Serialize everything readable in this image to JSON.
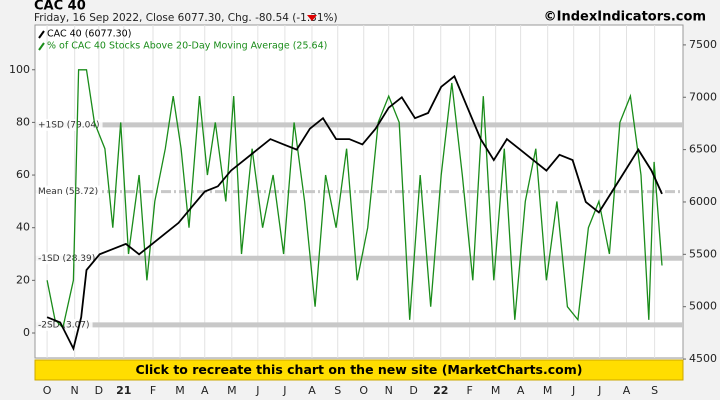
{
  "chart_data": {
    "type": "line",
    "title": "CAC 40",
    "subtitle": "Friday, 16 Sep 2022, Close 6077.30, Chg. -80.54 (-1.31%)",
    "source": "©IndexIndicators.com",
    "banner": "Click to recreate this chart on the new site (MarketCharts.com)",
    "xlim": [
      -0.46,
      24.2
    ],
    "xticks": [
      {
        "value": 0,
        "label": "O"
      },
      {
        "value": 1.05,
        "label": "N"
      },
      {
        "value": 1.97,
        "label": "D"
      },
      {
        "value": 2.92,
        "label": "21"
      },
      {
        "value": 4.03,
        "label": "F"
      },
      {
        "value": 5.06,
        "label": "M"
      },
      {
        "value": 6.0,
        "label": "A"
      },
      {
        "value": 7.03,
        "label": "M"
      },
      {
        "value": 8.02,
        "label": "J"
      },
      {
        "value": 9.05,
        "label": "J"
      },
      {
        "value": 10.08,
        "label": "A"
      },
      {
        "value": 11.06,
        "label": "S"
      },
      {
        "value": 12.05,
        "label": "O"
      },
      {
        "value": 13.0,
        "label": "N"
      },
      {
        "value": 13.95,
        "label": "D"
      },
      {
        "value": 14.98,
        "label": "22"
      },
      {
        "value": 16.08,
        "label": "F"
      },
      {
        "value": 17.07,
        "label": "M"
      },
      {
        "value": 18.02,
        "label": "A"
      },
      {
        "value": 19.05,
        "label": "M"
      },
      {
        "value": 20.04,
        "label": "J"
      },
      {
        "value": 21.03,
        "label": "J"
      },
      {
        "value": 22.05,
        "label": "A"
      },
      {
        "value": 23.12,
        "label": "S"
      }
    ],
    "ylim": [
      -9.5,
      117
    ],
    "yticks": [
      0,
      20,
      40,
      60,
      80,
      100
    ],
    "y2lim": [
      4510,
      7690
    ],
    "y2ticks": [
      4500,
      5000,
      5500,
      6000,
      6500,
      7000,
      7500
    ],
    "bands": [
      {
        "label": "+1SD (79.04)",
        "value": 79.04,
        "style": "solid"
      },
      {
        "label": "Mean (53.72)",
        "value": 53.72,
        "style": "dashdot"
      },
      {
        "label": "-1SD (28.39)",
        "value": 28.39,
        "style": "solid"
      },
      {
        "label": "-2SD (3.07)",
        "value": 3.07,
        "style": "solid"
      }
    ],
    "series": [
      {
        "name": "CAC 40 (6077.30)",
        "color": "#000000",
        "axis": "y2",
        "x": [
          0,
          0.5,
          1.0,
          1.3,
          1.5,
          2.0,
          2.5,
          3.0,
          3.5,
          4.0,
          4.5,
          5.0,
          5.5,
          6.0,
          6.5,
          7.0,
          7.5,
          8.0,
          8.5,
          9.0,
          9.5,
          10.0,
          10.5,
          11.0,
          11.5,
          12.0,
          12.5,
          13.0,
          13.5,
          14.0,
          14.5,
          15.0,
          15.5,
          16.0,
          16.5,
          17.0,
          17.5,
          18.0,
          18.5,
          19.0,
          19.5,
          20.0,
          20.5,
          21.0,
          21.5,
          22.0,
          22.5,
          23.0,
          23.4
        ],
        "values": [
          4900,
          4850,
          4600,
          4900,
          5350,
          5500,
          5550,
          5600,
          5500,
          5600,
          5700,
          5800,
          5950,
          6100,
          6150,
          6300,
          6400,
          6500,
          6600,
          6550,
          6500,
          6700,
          6800,
          6600,
          6600,
          6550,
          6700,
          6900,
          7000,
          6800,
          6850,
          7100,
          7200,
          6900,
          6600,
          6400,
          6600,
          6500,
          6400,
          6300,
          6450,
          6400,
          6000,
          5900,
          6100,
          6300,
          6500,
          6300,
          6077.3
        ]
      },
      {
        "name": "% of CAC 40 Stocks Above 20-Day Moving Average (25.64)",
        "color": "#1a8c1a",
        "axis": "y",
        "x": [
          0,
          0.3,
          0.6,
          1.0,
          1.2,
          1.5,
          1.8,
          2.2,
          2.5,
          2.8,
          3.1,
          3.5,
          3.8,
          4.1,
          4.5,
          4.8,
          5.1,
          5.4,
          5.8,
          6.1,
          6.4,
          6.8,
          7.1,
          7.4,
          7.8,
          8.2,
          8.6,
          9.0,
          9.4,
          9.8,
          10.2,
          10.6,
          11.0,
          11.4,
          11.8,
          12.2,
          12.6,
          13.0,
          13.4,
          13.8,
          14.2,
          14.6,
          15.0,
          15.4,
          15.8,
          16.2,
          16.6,
          17.0,
          17.4,
          17.8,
          18.2,
          18.6,
          19.0,
          19.4,
          19.8,
          20.2,
          20.6,
          21.0,
          21.4,
          21.8,
          22.2,
          22.6,
          22.9,
          23.1,
          23.4
        ],
        "values": [
          20,
          5,
          2,
          20,
          100,
          100,
          80,
          70,
          40,
          80,
          30,
          60,
          20,
          50,
          70,
          90,
          70,
          40,
          90,
          60,
          80,
          50,
          90,
          30,
          70,
          40,
          60,
          30,
          80,
          50,
          10,
          60,
          40,
          70,
          20,
          40,
          80,
          90,
          80,
          5,
          60,
          10,
          60,
          95,
          60,
          20,
          90,
          20,
          70,
          5,
          50,
          70,
          20,
          50,
          10,
          5,
          40,
          50,
          30,
          80,
          90,
          60,
          5,
          65,
          25.64
        ]
      }
    ]
  }
}
